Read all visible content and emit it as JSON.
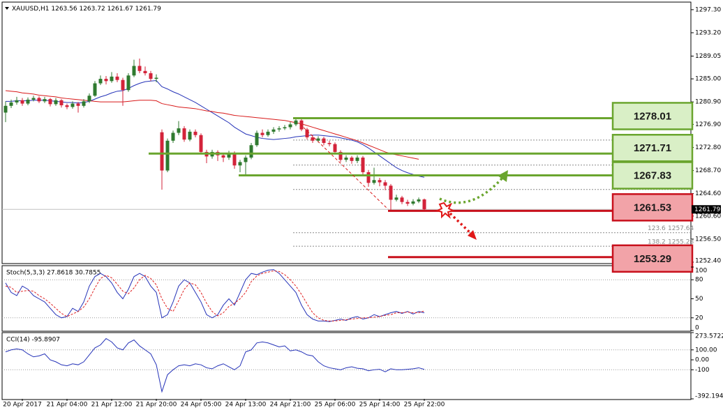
{
  "chart_data": [
    {
      "type": "candlestick",
      "title": "XAUUSD,H1",
      "categories": [
        null,
        null,
        null,
        "20 Apr 2017",
        null,
        null,
        null,
        null,
        null,
        null,
        null,
        "21 Apr 04:00",
        null,
        null,
        null,
        null,
        null,
        null,
        null,
        "21 Apr 12:00",
        null,
        null,
        null,
        null,
        null,
        null,
        null,
        "21 Apr 20:00",
        null,
        null,
        null,
        null,
        null,
        null,
        null,
        "24 Apr 05:00",
        null,
        null,
        null,
        null,
        null,
        null,
        null,
        "24 Apr 13:00",
        null,
        null,
        null,
        null,
        null,
        null,
        null,
        "24 Apr 21:00",
        null,
        null,
        null,
        null,
        null,
        null,
        null,
        "25 Apr 06:00",
        null,
        null,
        null,
        null,
        null,
        null,
        null,
        "25 Apr 14:00",
        null,
        null,
        null,
        null,
        null,
        null,
        null,
        "25 Apr 22:00"
      ],
      "ohlc": [
        [
          1279.0,
          1281.0,
          1277.3,
          1280.2
        ],
        [
          1280.2,
          1281.3,
          1279.8,
          1280.8
        ],
        [
          1280.8,
          1281.8,
          1280.4,
          1281.2
        ],
        [
          1281.2,
          1281.6,
          1280.2,
          1280.6
        ],
        [
          1280.6,
          1281.7,
          1280.3,
          1281.3
        ],
        [
          1281.3,
          1282.0,
          1281.0,
          1281.6
        ],
        [
          1281.6,
          1281.9,
          1280.7,
          1281.0
        ],
        [
          1281.0,
          1281.8,
          1280.7,
          1281.4
        ],
        [
          1281.4,
          1281.6,
          1280.1,
          1280.5
        ],
        [
          1280.5,
          1281.6,
          1280.2,
          1281.2
        ],
        [
          1281.2,
          1281.4,
          1279.9,
          1280.3
        ],
        [
          1280.3,
          1280.6,
          1279.6,
          1280.0
        ],
        [
          1280.0,
          1281.0,
          1279.7,
          1280.6
        ],
        [
          1280.6,
          1280.9,
          1279.0,
          1280.2
        ],
        [
          1280.2,
          1281.4,
          1279.9,
          1281.0
        ],
        [
          1281.0,
          1282.4,
          1280.7,
          1282.0
        ],
        [
          1282.0,
          1284.6,
          1281.8,
          1284.2
        ],
        [
          1284.2,
          1285.6,
          1283.9,
          1285.0
        ],
        [
          1285.0,
          1285.5,
          1284.0,
          1284.6
        ],
        [
          1284.6,
          1286.2,
          1284.3,
          1285.4
        ],
        [
          1285.4,
          1286.0,
          1284.4,
          1284.8
        ],
        [
          1284.8,
          1285.2,
          1280.2,
          1283.0
        ],
        [
          1283.0,
          1286.0,
          1282.7,
          1285.6
        ],
        [
          1285.6,
          1288.4,
          1285.3,
          1287.3
        ],
        [
          1287.3,
          1288.6,
          1286.0,
          1286.4
        ],
        [
          1286.4,
          1287.2,
          1285.6,
          1286.0
        ],
        [
          1286.0,
          1286.4,
          1284.6,
          1285.0
        ],
        [
          1285.0,
          1285.8,
          1284.4,
          1285.2
        ],
        [
          1275.5,
          1276.0,
          1265.3,
          1268.7
        ],
        [
          1268.7,
          1274.4,
          1268.4,
          1274.0
        ],
        [
          1274.0,
          1275.8,
          1273.6,
          1275.4
        ],
        [
          1275.4,
          1277.5,
          1275.0,
          1276.2
        ],
        [
          1276.2,
          1276.6,
          1273.8,
          1274.2
        ],
        [
          1274.2,
          1276.0,
          1273.9,
          1275.6
        ],
        [
          1275.6,
          1276.0,
          1274.6,
          1275.0
        ],
        [
          1275.0,
          1275.3,
          1271.6,
          1272.0
        ],
        [
          1272.0,
          1272.4,
          1270.0,
          1271.2
        ],
        [
          1271.2,
          1272.4,
          1270.8,
          1272.0
        ],
        [
          1272.0,
          1272.3,
          1270.4,
          1271.4
        ],
        [
          1271.4,
          1271.8,
          1270.2,
          1271.0
        ],
        [
          1271.0,
          1272.2,
          1270.6,
          1271.8
        ],
        [
          1271.8,
          1272.1,
          1269.0,
          1269.6
        ],
        [
          1269.6,
          1270.6,
          1268.4,
          1270.2
        ],
        [
          1270.2,
          1271.4,
          1268.0,
          1271.0
        ],
        [
          1271.0,
          1273.6,
          1270.7,
          1273.2
        ],
        [
          1273.2,
          1275.8,
          1272.9,
          1275.4
        ],
        [
          1275.4,
          1276.0,
          1274.6,
          1275.0
        ],
        [
          1275.0,
          1276.0,
          1274.7,
          1275.6
        ],
        [
          1275.6,
          1276.4,
          1275.2,
          1276.0
        ],
        [
          1276.0,
          1276.6,
          1275.6,
          1276.2
        ],
        [
          1276.2,
          1276.8,
          1275.9,
          1276.4
        ],
        [
          1276.4,
          1277.3,
          1276.0,
          1276.9
        ],
        [
          1276.9,
          1278.0,
          1276.6,
          1277.6
        ],
        [
          1277.6,
          1277.9,
          1275.7,
          1276.0
        ],
        [
          1276.0,
          1276.3,
          1274.2,
          1274.6
        ],
        [
          1274.6,
          1275.0,
          1273.6,
          1274.0
        ],
        [
          1274.0,
          1274.8,
          1273.7,
          1274.4
        ],
        [
          1274.4,
          1274.7,
          1273.2,
          1273.6
        ],
        [
          1273.6,
          1274.0,
          1273.0,
          1273.4
        ],
        [
          1273.4,
          1273.7,
          1271.6,
          1272.0
        ],
        [
          1272.0,
          1272.3,
          1270.2,
          1270.6
        ],
        [
          1270.6,
          1271.4,
          1270.2,
          1271.0
        ],
        [
          1271.0,
          1271.3,
          1269.9,
          1270.4
        ],
        [
          1270.4,
          1271.4,
          1270.0,
          1271.0
        ],
        [
          1271.0,
          1271.3,
          1268.0,
          1268.4
        ],
        [
          1268.4,
          1268.8,
          1265.8,
          1266.5
        ],
        [
          1266.5,
          1269.2,
          1266.2,
          1267.0
        ],
        [
          1267.0,
          1267.4,
          1265.9,
          1266.6
        ],
        [
          1266.6,
          1267.0,
          1265.2,
          1266.0
        ],
        [
          1266.0,
          1266.3,
          1261.5,
          1263.5
        ],
        [
          1263.5,
          1264.4,
          1263.2,
          1263.9
        ],
        [
          1263.9,
          1264.2,
          1262.7,
          1263.1
        ],
        [
          1263.1,
          1263.5,
          1262.4,
          1262.8
        ],
        [
          1262.8,
          1263.6,
          1262.5,
          1263.2
        ],
        [
          1263.2,
          1263.9,
          1262.9,
          1263.56
        ],
        [
          1263.56,
          1263.72,
          1261.67,
          1261.79
        ]
      ],
      "up_color": "#2f7a2f",
      "down_color": "#d3233a",
      "overlays": [
        {
          "color": "#2432b8",
          "values": [
            1281.0,
            1281.0,
            1281.1,
            1281.1,
            1281.1,
            1281.2,
            1281.2,
            1281.2,
            1281.1,
            1281.0,
            1280.9,
            1280.8,
            1280.8,
            1280.7,
            1280.8,
            1281.0,
            1281.4,
            1281.8,
            1282.1,
            1282.5,
            1282.8,
            1282.9,
            1283.3,
            1283.8,
            1284.2,
            1284.5,
            1284.6,
            1284.7,
            1283.6,
            1283.2,
            1282.7,
            1282.3,
            1281.8,
            1281.3,
            1280.8,
            1280.2,
            1279.6,
            1279.0,
            1278.4,
            1277.8,
            1277.2,
            1276.4,
            1275.8,
            1275.2,
            1274.9,
            1274.6,
            1274.4,
            1274.3,
            1274.2,
            1274.3,
            1274.4,
            1274.5,
            1274.7,
            1274.8,
            1274.9,
            1275.0,
            1275.0,
            1274.9,
            1274.8,
            1274.7,
            1274.5,
            1274.3,
            1274.1,
            1273.8,
            1273.3,
            1272.7,
            1272.0,
            1271.3,
            1270.6,
            1269.9,
            1269.2,
            1268.7,
            1268.3,
            1268.0,
            1267.7,
            1267.5
          ]
        },
        {
          "color": "#d81818",
          "values": [
            1282.9,
            1282.8,
            1282.7,
            1282.5,
            1282.4,
            1282.3,
            1282.1,
            1282.0,
            1281.9,
            1281.8,
            1281.6,
            1281.5,
            1281.4,
            1281.3,
            1281.2,
            1281.1,
            1281.0,
            1280.9,
            1280.9,
            1280.9,
            1280.9,
            1280.9,
            1281.0,
            1281.1,
            1281.2,
            1281.2,
            1281.2,
            1281.1,
            1280.6,
            1280.4,
            1280.2,
            1280.0,
            1279.9,
            1279.8,
            1279.7,
            1279.5,
            1279.3,
            1279.2,
            1279.0,
            1278.9,
            1278.7,
            1278.5,
            1278.4,
            1278.3,
            1278.2,
            1278.1,
            1278.0,
            1277.9,
            1277.8,
            1277.7,
            1277.6,
            1277.4,
            1277.2,
            1277.0,
            1276.7,
            1276.4,
            1276.1,
            1275.8,
            1275.5,
            1275.2,
            1274.9,
            1274.6,
            1274.3,
            1274.0,
            1273.6,
            1273.2,
            1272.8,
            1272.4,
            1272.0,
            1271.7,
            1271.5,
            1271.3,
            1271.1,
            1270.9,
            1270.7,
            null
          ]
        }
      ],
      "levels": [
        {
          "value": 1278.01,
          "color": "#6aa52e",
          "fill": "#d9efc6"
        },
        {
          "value": 1271.71,
          "color": "#6aa52e",
          "fill": "#d9efc6"
        },
        {
          "value": 1267.83,
          "color": "#6aa52e",
          "fill": "#d9efc6"
        },
        {
          "value": 1261.53,
          "color": "#c8101c",
          "fill": "#f2a3a8"
        },
        {
          "value": 1253.29,
          "color": "#c8101c",
          "fill": "#f2a3a8"
        }
      ],
      "fib_levels": [
        1274.12,
        1269.67,
        1265.33
      ],
      "fib_labels": [
        {
          "ratio": "123.6",
          "price": 1257.64
        },
        {
          "ratio": "138.2",
          "price": 1255.23
        }
      ],
      "ylim": [
        1252.15,
        1298.65
      ],
      "yticks": [
        {
          "value": 1297.3,
          "label": "1297.30"
        },
        {
          "value": 1293.2,
          "label": "1293.20"
        },
        {
          "value": 1289.05,
          "label": "1289.05"
        },
        {
          "value": 1285,
          "label": "1285.00"
        },
        {
          "value": 1280.9,
          "label": "1280.90"
        },
        {
          "value": 1276.9,
          "label": "1276.90"
        },
        {
          "value": 1272.8,
          "label": "1272.80"
        },
        {
          "value": 1268.7,
          "label": "1268.70"
        },
        {
          "value": 1264.6,
          "label": "1264.60"
        },
        {
          "value": 1260.6,
          "label": "1260.60"
        },
        {
          "value": 1256.5,
          "label": "1256.50"
        },
        {
          "value": 1252.4,
          "label": "1252.40"
        }
      ]
    },
    {
      "type": "line",
      "title": "Stoch(5,3,3) 27.8618 30.7855",
      "series": [
        {
          "color": "#2432b8",
          "dashed": false,
          "values": [
            75,
            60,
            55,
            70,
            65,
            55,
            50,
            45,
            35,
            25,
            20,
            22,
            35,
            30,
            45,
            70,
            85,
            90,
            85,
            75,
            60,
            50,
            65,
            85,
            90,
            85,
            70,
            60,
            20,
            25,
            45,
            70,
            80,
            75,
            60,
            45,
            25,
            20,
            25,
            40,
            50,
            40,
            60,
            80,
            90,
            88,
            92,
            95,
            96,
            90,
            80,
            70,
            60,
            40,
            25,
            18,
            15,
            15,
            14,
            16,
            18,
            16,
            20,
            22,
            18,
            20,
            25,
            22,
            25,
            28,
            30,
            27,
            30,
            26,
            30,
            27.86
          ]
        },
        {
          "color": "#e02020",
          "dashed": true,
          "values": [
            70,
            68,
            60,
            62,
            63,
            62,
            55,
            50,
            43,
            35,
            27,
            22,
            26,
            30,
            37,
            50,
            67,
            82,
            87,
            83,
            73,
            62,
            58,
            67,
            80,
            87,
            82,
            72,
            50,
            35,
            30,
            47,
            65,
            75,
            72,
            60,
            43,
            30,
            23,
            28,
            38,
            43,
            50,
            60,
            77,
            86,
            90,
            92,
            94,
            93,
            88,
            80,
            70,
            57,
            42,
            28,
            20,
            16,
            15,
            15,
            16,
            17,
            18,
            19,
            20,
            20,
            21,
            22,
            24,
            25,
            28,
            28,
            29,
            28,
            28,
            30.79
          ]
        }
      ],
      "levels": [
        80,
        20
      ],
      "ylim": [
        0,
        100
      ],
      "yticks": [
        100,
        80,
        50,
        20,
        0
      ]
    },
    {
      "type": "line",
      "title": "CCI(14) -95.8907",
      "series": [
        {
          "color": "#2432b8",
          "dashed": false,
          "values": [
            80,
            100,
            110,
            100,
            60,
            30,
            40,
            60,
            0,
            -20,
            -50,
            -60,
            -40,
            -50,
            -20,
            50,
            120,
            150,
            214,
            180,
            120,
            100,
            170,
            200,
            140,
            100,
            60,
            -50,
            -320,
            -150,
            -100,
            -60,
            -50,
            -60,
            -40,
            -50,
            -80,
            -90,
            -60,
            -40,
            -70,
            -100,
            -60,
            80,
            100,
            170,
            180,
            170,
            150,
            130,
            140,
            90,
            100,
            80,
            50,
            40,
            -20,
            -60,
            -80,
            -90,
            -100,
            -80,
            -70,
            -85,
            -90,
            -110,
            -100,
            -95,
            -120,
            -90,
            -100,
            -100,
            -95,
            -90,
            -80,
            -95.8907
          ]
        }
      ],
      "levels": [
        100,
        -100
      ],
      "ylim": [
        -392.194,
        273.5722
      ],
      "yticks": [
        273.5722,
        {
          "value": 100,
          "label": "100.00"
        },
        {
          "value": 0,
          "label": "0.00"
        },
        -100,
        {
          "value": -392.194,
          "label": "-392.1940"
        }
      ]
    }
  ]
}
